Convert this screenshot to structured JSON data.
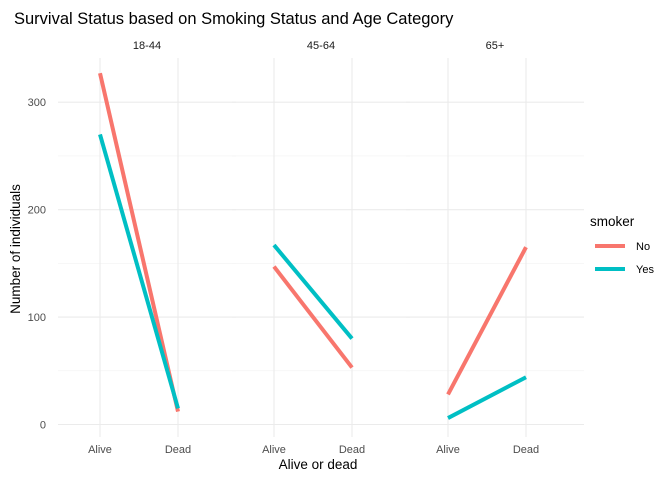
{
  "chart_data": {
    "type": "line",
    "title": "Survival Status based on Smoking Status and Age Category",
    "xlabel": "Alive or dead",
    "ylabel": "Number of individuals",
    "categories": [
      "Alive",
      "Dead"
    ],
    "ylim": [
      0,
      340
    ],
    "yticks": [
      0,
      100,
      200,
      300
    ],
    "grid": true,
    "legend": {
      "title": "smoker",
      "placement": "right",
      "entries": [
        "No",
        "Yes"
      ]
    },
    "colors": {
      "No": "#F8766D",
      "Yes": "#00BFC4"
    },
    "panels": [
      {
        "label": "18-44",
        "series": [
          {
            "name": "No",
            "values": [
              327,
              12
            ]
          },
          {
            "name": "Yes",
            "values": [
              270,
              15
            ]
          }
        ]
      },
      {
        "label": "45-64",
        "series": [
          {
            "name": "No",
            "values": [
              147,
              53
            ]
          },
          {
            "name": "Yes",
            "values": [
              167,
              80
            ]
          }
        ]
      },
      {
        "label": "65+",
        "series": [
          {
            "name": "No",
            "values": [
              28,
              165
            ]
          },
          {
            "name": "Yes",
            "values": [
              6,
              44
            ]
          }
        ]
      }
    ]
  }
}
